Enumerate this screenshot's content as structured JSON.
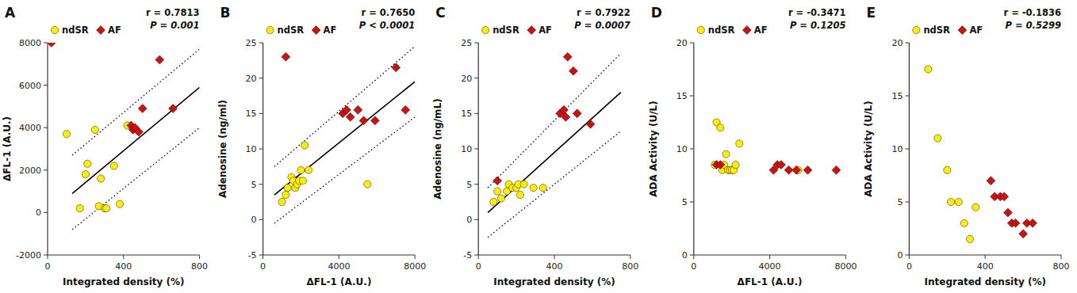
{
  "chart_data": [
    {
      "type": "scatter",
      "title": "A",
      "xlabel": "Integrated density (%)",
      "ylabel": "ΔFL-1 (A.U.)",
      "annotations": [
        "r = 0.7813",
        "P = 0.001"
      ],
      "xlim": [
        0,
        800
      ],
      "ylim": [
        -2000,
        8000
      ],
      "xticks": [
        0,
        400,
        800
      ],
      "yticks": [
        -2000,
        0,
        2000,
        4000,
        6000,
        8000
      ],
      "grid": false,
      "legend": "upper left",
      "series": [
        {
          "name": "ndSR",
          "type": "scatter",
          "marker": "circle",
          "color": "#FFEE00",
          "x": [
            100,
            170,
            200,
            210,
            250,
            270,
            280,
            300,
            310,
            350,
            380,
            420
          ],
          "values": [
            3700,
            200,
            1800,
            2300,
            3900,
            300,
            1600,
            200,
            200,
            2200,
            400,
            4100
          ]
        },
        {
          "name": "AF",
          "type": "scatter",
          "marker": "diamond",
          "color": "#CC1111",
          "x": [
            20,
            440,
            450,
            460,
            480,
            500,
            590,
            660
          ],
          "values": [
            8000,
            4100,
            3900,
            4000,
            3800,
            4900,
            7200,
            4900
          ]
        },
        {
          "type": "line",
          "line_style": "solid",
          "color": "black",
          "x": [
            130,
            800
          ],
          "values": [
            900,
            5900
          ]
        },
        {
          "type": "line",
          "line_style": "dotted",
          "color": "black",
          "x": [
            130,
            800
          ],
          "values": [
            2700,
            7700
          ]
        },
        {
          "type": "line",
          "line_style": "dotted",
          "color": "black",
          "x": [
            130,
            800
          ],
          "values": [
            -800,
            4000
          ]
        }
      ]
    },
    {
      "type": "scatter",
      "title": "B",
      "xlabel": "ΔFL-1 (A.U.)",
      "ylabel": "Adenosine (ng/ml)",
      "annotations": [
        "r = 0.7650",
        "P < 0.0001"
      ],
      "xlim": [
        0,
        8000
      ],
      "ylim": [
        -5,
        25
      ],
      "xticks": [
        0,
        4000,
        8000
      ],
      "yticks": [
        -5,
        0,
        5,
        10,
        15,
        20,
        25
      ],
      "grid": false,
      "legend": "upper left",
      "series": [
        {
          "name": "ndSR",
          "type": "scatter",
          "marker": "circle",
          "color": "#FFEE00",
          "x": [
            1000,
            1200,
            1300,
            1500,
            1600,
            1700,
            1800,
            1900,
            2000,
            2100,
            2200,
            2400,
            5500
          ],
          "values": [
            2.5,
            3.5,
            4.5,
            6.0,
            5.5,
            4.5,
            5.0,
            5.5,
            7.0,
            5.5,
            10.5,
            7.0,
            5.0
          ]
        },
        {
          "name": "AF",
          "type": "scatter",
          "marker": "diamond",
          "color": "#CC1111",
          "x": [
            1200,
            4200,
            4400,
            4600,
            5000,
            5300,
            5900,
            7000,
            7500
          ],
          "values": [
            23,
            15.0,
            15.5,
            14.5,
            15.5,
            14.0,
            14.0,
            21.5,
            15.5
          ]
        },
        {
          "type": "line",
          "line_style": "solid",
          "color": "black",
          "x": [
            600,
            8000
          ],
          "values": [
            3.5,
            19.5
          ]
        },
        {
          "type": "line",
          "line_style": "dotted",
          "color": "black",
          "x": [
            600,
            8000
          ],
          "values": [
            7.5,
            24.5
          ]
        },
        {
          "type": "line",
          "line_style": "dotted",
          "color": "black",
          "x": [
            600,
            8000
          ],
          "values": [
            -0.5,
            14.5
          ]
        }
      ]
    },
    {
      "type": "scatter",
      "title": "C",
      "xlabel": "Integrated density (%)",
      "ylabel": "Adenosine (ng/mL)",
      "annotations": [
        "r = 0.7922",
        "P = 0.0007"
      ],
      "xlim": [
        0,
        800
      ],
      "ylim": [
        -5,
        25
      ],
      "xticks": [
        0,
        400,
        800
      ],
      "yticks": [
        -5,
        0,
        5,
        10,
        15,
        20,
        25
      ],
      "grid": false,
      "legend": "upper left",
      "series": [
        {
          "name": "ndSR",
          "type": "scatter",
          "marker": "circle",
          "color": "#FFEE00",
          "x": [
            80,
            100,
            120,
            150,
            160,
            180,
            200,
            210,
            220,
            240,
            290,
            340
          ],
          "values": [
            2.5,
            4.0,
            3.0,
            4.0,
            5.0,
            4.5,
            4.5,
            5.0,
            3.5,
            5.0,
            4.5,
            4.5
          ]
        },
        {
          "name": "AF",
          "type": "scatter",
          "marker": "diamond",
          "color": "#CC1111",
          "x": [
            100,
            430,
            450,
            460,
            470,
            500,
            520,
            590
          ],
          "values": [
            5.5,
            15.0,
            15.5,
            14.5,
            23.0,
            21.0,
            15.0,
            13.5
          ]
        },
        {
          "type": "line",
          "line_style": "solid",
          "color": "black",
          "x": [
            50,
            750
          ],
          "values": [
            1.0,
            18.0
          ]
        },
        {
          "type": "line",
          "line_style": "dotted",
          "color": "black",
          "x": [
            50,
            750
          ],
          "values": [
            4.5,
            23.5
          ]
        },
        {
          "type": "line",
          "line_style": "dotted",
          "color": "black",
          "x": [
            50,
            750
          ],
          "values": [
            -2.5,
            12.5
          ]
        }
      ]
    },
    {
      "type": "scatter",
      "title": "D",
      "xlabel": "ΔFL-1 (A.U.)",
      "ylabel": "ADA Activity (U/L)",
      "annotations": [
        "r = -0.3471",
        "P = 0.1205"
      ],
      "xlim": [
        0,
        8000
      ],
      "ylim": [
        0,
        20
      ],
      "xticks": [
        0,
        4000,
        8000
      ],
      "yticks": [
        0,
        5,
        10,
        15,
        20
      ],
      "grid": false,
      "legend": "upper left",
      "series": [
        {
          "name": "ndSR",
          "type": "scatter",
          "marker": "circle",
          "color": "#FFEE00",
          "x": [
            1100,
            1200,
            1400,
            1500,
            1600,
            1700,
            1800,
            1900,
            2000,
            2100,
            2200,
            2400,
            5500
          ],
          "values": [
            8.5,
            12.5,
            12.0,
            8.0,
            8.5,
            9.5,
            8.0,
            8.0,
            8.0,
            8.0,
            8.5,
            10.5,
            8.0
          ]
        },
        {
          "name": "AF",
          "type": "scatter",
          "marker": "diamond",
          "color": "#CC1111",
          "x": [
            1200,
            1400,
            4200,
            4400,
            4600,
            5000,
            5400,
            6000,
            7500
          ],
          "values": [
            8.5,
            8.5,
            8.0,
            8.5,
            8.5,
            8.0,
            8.0,
            8.0,
            8.0
          ]
        }
      ]
    },
    {
      "type": "scatter",
      "title": "E",
      "xlabel": "Integrated density (%)",
      "ylabel": "ADA Activity (U/L)",
      "annotations": [
        "r = -0.1836",
        "P = 0.5299"
      ],
      "xlim": [
        0,
        800
      ],
      "ylim": [
        0,
        20
      ],
      "xticks": [
        0,
        400,
        800
      ],
      "yticks": [
        0,
        5,
        10,
        15,
        20
      ],
      "grid": false,
      "legend": "upper left",
      "series": [
        {
          "name": "ndSR",
          "type": "scatter",
          "marker": "circle",
          "color": "#FFEE00",
          "x": [
            100,
            150,
            200,
            220,
            260,
            290,
            320,
            350
          ],
          "values": [
            17.5,
            11.0,
            8.0,
            5.0,
            5.0,
            3.0,
            1.5,
            4.5
          ]
        },
        {
          "name": "AF",
          "type": "scatter",
          "marker": "diamond",
          "color": "#CC1111",
          "x": [
            430,
            450,
            480,
            500,
            520,
            540,
            560,
            600,
            620,
            650
          ],
          "values": [
            7.0,
            5.5,
            5.5,
            5.5,
            4.0,
            3.0,
            3.0,
            2.0,
            3.0,
            3.0
          ]
        }
      ]
    }
  ]
}
